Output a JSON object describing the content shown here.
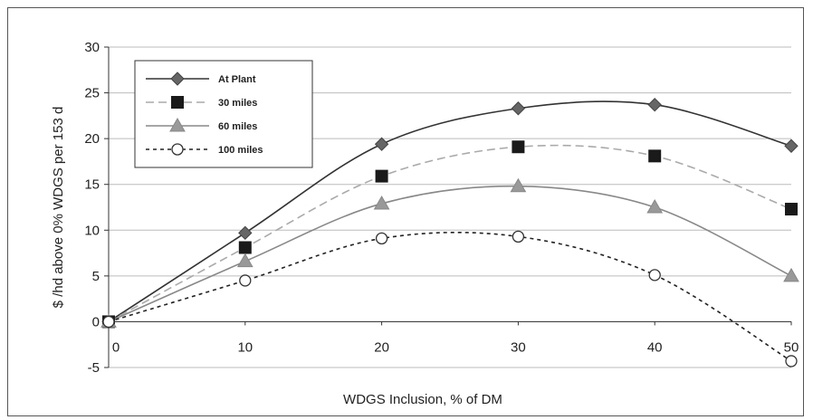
{
  "chart_data": {
    "type": "line",
    "title": "",
    "xlabel": "WDGS Inclusion, % of DM",
    "ylabel": "$ /hd above 0% WDGS per 153 d",
    "x": [
      0,
      10,
      20,
      30,
      40,
      50
    ],
    "xlim": [
      0,
      50
    ],
    "ylim": [
      -5,
      30
    ],
    "x_ticks": [
      "0",
      "10",
      "20",
      "30",
      "40",
      "50"
    ],
    "y_ticks": [
      "-5",
      "0",
      "5",
      "10",
      "15",
      "20",
      "25",
      "30"
    ],
    "grid": "horizontal",
    "legend_position": "top-left",
    "series": [
      {
        "name": "At Plant",
        "values": [
          0,
          9.7,
          19.4,
          23.3,
          23.7,
          19.2
        ],
        "color": "#333333",
        "marker": "diamond",
        "line": "solid"
      },
      {
        "name": "30 miles",
        "values": [
          0,
          8.1,
          15.9,
          19.1,
          18.1,
          12.3
        ],
        "color": "#aaaaaa",
        "marker": "square",
        "line": "dashed"
      },
      {
        "name": "60 miles",
        "values": [
          0,
          6.6,
          12.9,
          14.8,
          12.5,
          5.0
        ],
        "color": "#888888",
        "marker": "triangle",
        "line": "solid"
      },
      {
        "name": "100 miles",
        "values": [
          0,
          4.5,
          9.1,
          9.3,
          5.1,
          -4.3
        ],
        "color": "#222222",
        "marker": "circle",
        "line": "dotted"
      }
    ]
  }
}
